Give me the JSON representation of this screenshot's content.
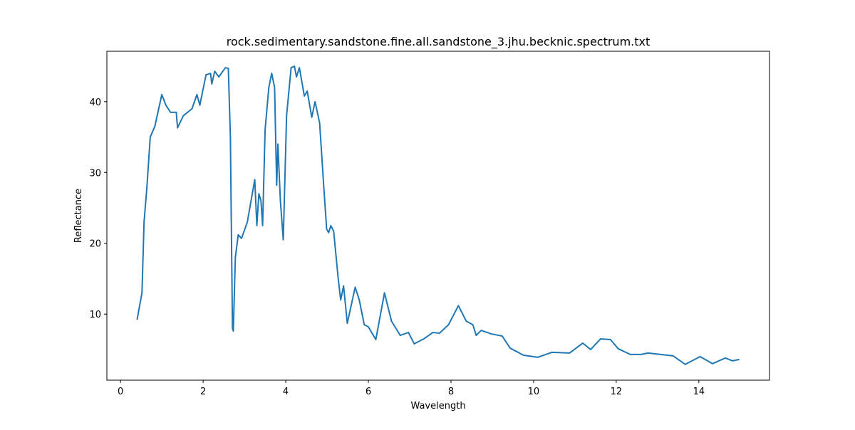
{
  "chart_data": {
    "type": "line",
    "title": "rock.sedimentary.sandstone.fine.all.sandstone_3.jhu.becknic.spectrum.txt",
    "xlabel": "Wavelength",
    "ylabel": "Reflectance",
    "x": [
      0.4,
      0.52,
      0.57,
      0.64,
      0.72,
      0.83,
      1.0,
      1.1,
      1.21,
      1.35,
      1.38,
      1.52,
      1.73,
      1.85,
      1.92,
      2.07,
      2.18,
      2.21,
      2.28,
      2.38,
      2.54,
      2.61,
      2.66,
      2.71,
      2.73,
      2.78,
      2.85,
      2.93,
      3.07,
      3.25,
      3.3,
      3.35,
      3.4,
      3.44,
      3.5,
      3.59,
      3.66,
      3.73,
      3.78,
      3.81,
      3.87,
      3.94,
      4.02,
      4.13,
      4.21,
      4.26,
      4.33,
      4.45,
      4.52,
      4.63,
      4.71,
      4.82,
      4.92,
      4.99,
      5.04,
      5.09,
      5.16,
      5.27,
      5.33,
      5.4,
      5.49,
      5.68,
      5.78,
      5.9,
      6.0,
      6.18,
      6.39,
      6.56,
      6.77,
      6.97,
      7.11,
      7.34,
      7.56,
      7.72,
      7.94,
      8.18,
      8.37,
      8.53,
      8.61,
      8.73,
      8.98,
      9.24,
      9.43,
      9.75,
      10.1,
      10.44,
      10.87,
      11.19,
      11.38,
      11.62,
      11.86,
      12.05,
      12.34,
      12.6,
      12.77,
      13.38,
      13.67,
      14.03,
      14.33,
      14.64,
      14.81,
      14.98
    ],
    "series": [
      {
        "name": "spectrum",
        "color": "#1f77b4",
        "values": [
          9.2,
          13,
          23,
          28,
          35,
          36.5,
          41,
          39.5,
          38.5,
          38.5,
          36.3,
          38,
          39,
          41,
          39.5,
          43.8,
          44,
          42.5,
          44.3,
          43.5,
          44.8,
          44.7,
          35,
          8,
          7.6,
          18,
          21.2,
          20.7,
          23,
          29,
          22.5,
          27,
          26,
          22.5,
          36,
          42,
          44,
          42,
          28.2,
          34,
          26,
          20.5,
          38,
          44.8,
          45,
          43.5,
          44.8,
          40.8,
          41.5,
          37.8,
          40,
          37,
          28,
          22,
          21.5,
          22.5,
          21.7,
          15,
          12,
          14,
          8.7,
          13.8,
          12,
          8.5,
          8.2,
          6.4,
          13,
          9,
          7,
          7.4,
          5.8,
          6.5,
          7.4,
          7.3,
          8.5,
          11.2,
          9,
          8.5,
          7,
          7.7,
          7.2,
          6.9,
          5.2,
          4.2,
          3.9,
          4.6,
          4.5,
          5.9,
          5,
          6.5,
          6.4,
          5.1,
          4.3,
          4.3,
          4.5,
          4.1,
          2.9,
          4.0,
          3.0,
          3.8,
          3.4,
          3.6
        ]
      }
    ],
    "xlim": [
      -0.33,
      15.71
    ],
    "ylim": [
      0.67,
      47.12
    ],
    "xticks": [
      0,
      2,
      4,
      6,
      8,
      10,
      12,
      14
    ],
    "yticks": [
      10,
      20,
      30,
      40
    ]
  }
}
